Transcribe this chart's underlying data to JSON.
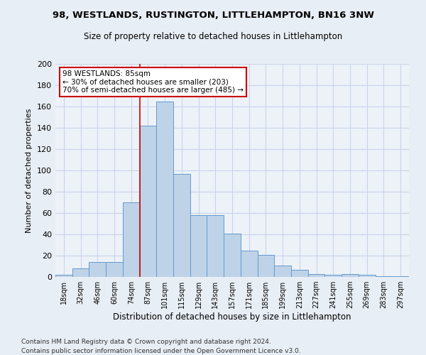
{
  "title1": "98, WESTLANDS, RUSTINGTON, LITTLEHAMPTON, BN16 3NW",
  "title2": "Size of property relative to detached houses in Littlehampton",
  "xlabel": "Distribution of detached houses by size in Littlehampton",
  "ylabel": "Number of detached properties",
  "categories": [
    "18sqm",
    "32sqm",
    "46sqm",
    "60sqm",
    "74sqm",
    "87sqm",
    "101sqm",
    "115sqm",
    "129sqm",
    "143sqm",
    "157sqm",
    "171sqm",
    "185sqm",
    "199sqm",
    "213sqm",
    "227sqm",
    "241sqm",
    "255sqm",
    "269sqm",
    "283sqm",
    "297sqm"
  ],
  "values": [
    2,
    8,
    14,
    14,
    70,
    142,
    165,
    97,
    58,
    58,
    41,
    25,
    21,
    11,
    7,
    3,
    2,
    3,
    2,
    1,
    1
  ],
  "bar_color": "#bed3e8",
  "bar_edge_color": "#6699cc",
  "vline_color": "#cc0000",
  "annotation_line1": "98 WESTLANDS: 85sqm",
  "annotation_line2": "← 30% of detached houses are smaller (203)",
  "annotation_line3": "70% of semi-detached houses are larger (485) →",
  "annotation_box_color": "white",
  "annotation_box_edge": "#cc0000",
  "ylim": [
    0,
    200
  ],
  "yticks": [
    0,
    20,
    40,
    60,
    80,
    100,
    120,
    140,
    160,
    180,
    200
  ],
  "background_color": "#e8eef5",
  "plot_bg_color": "#edf2f9",
  "grid_color": "#c8d4e8",
  "footer1": "Contains HM Land Registry data © Crown copyright and database right 2024.",
  "footer2": "Contains public sector information licensed under the Open Government Licence v3.0.",
  "title1_fontsize": 9.5,
  "title2_fontsize": 8.5
}
